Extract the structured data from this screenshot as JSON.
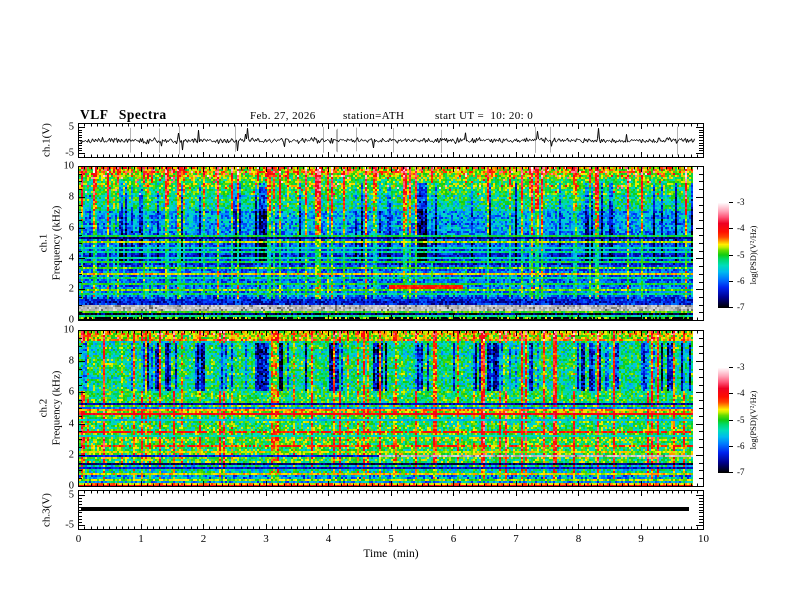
{
  "header": {
    "title": "VLF Spectra",
    "date": "Feb. 27, 2026",
    "station": "station=ATH",
    "start_ut": "start UT =  10: 20: 0"
  },
  "xaxis": {
    "label": "Time  (min)",
    "lim": [
      0,
      10
    ],
    "tick_labels": [
      "0",
      "1",
      "2",
      "3",
      "4",
      "5",
      "6",
      "7",
      "8",
      "9",
      "10"
    ],
    "minor_per_major": 10
  },
  "colorbar": {
    "label": "log(PSD)(V²/Hz)",
    "lim": [
      -7,
      -3
    ],
    "tick_labels": [
      "-3",
      "-4",
      "-5",
      "-6",
      "-7"
    ],
    "tick_values": [
      -3,
      -4,
      -5,
      -6,
      -7
    ],
    "stops": [
      [
        0.0,
        "#000000"
      ],
      [
        0.095,
        "#00008c"
      ],
      [
        0.19,
        "#0022ee"
      ],
      [
        0.27,
        "#0077ff"
      ],
      [
        0.34,
        "#00bbee"
      ],
      [
        0.4,
        "#00ddbb"
      ],
      [
        0.46,
        "#00d966"
      ],
      [
        0.5,
        "#11cc11"
      ],
      [
        0.545,
        "#66dd00"
      ],
      [
        0.575,
        "#ccee00"
      ],
      [
        0.6,
        "#ffee00"
      ],
      [
        0.635,
        "#ff9900"
      ],
      [
        0.67,
        "#ff4400"
      ],
      [
        0.72,
        "#ff0f00"
      ],
      [
        0.8,
        "#ee0022"
      ],
      [
        0.86,
        "#ff5577"
      ],
      [
        0.92,
        "#ffa8bb"
      ],
      [
        1.0,
        "#ffffff"
      ]
    ]
  },
  "chart_data": [
    {
      "type": "line",
      "name": "ch1-waveform",
      "ylabel": "ch.1(V)",
      "ylim": [
        -5,
        5
      ],
      "ytick_values": [
        5,
        -5
      ],
      "ytick_labels": [
        "5",
        "-5"
      ],
      "xlim": [
        0,
        10
      ],
      "seed": 11,
      "signal": {
        "kind": "noise",
        "mean": 0,
        "noise_amp": 0.5,
        "spike_rate": 0.045,
        "spike_amp": 3.4,
        "gray_events": 13,
        "end_min": 9.85
      }
    },
    {
      "type": "heatmap",
      "name": "ch1-spectrogram",
      "ylabel_lines": [
        "ch.1",
        "Frequency  (kHz)"
      ],
      "ylim": [
        0,
        10
      ],
      "ytick_values": [
        0,
        2,
        4,
        6,
        8,
        10
      ],
      "ytick_labels": [
        "0",
        "2",
        "4",
        "6",
        "8",
        "10"
      ],
      "xlim": [
        0,
        10
      ],
      "zlabel": "log(PSD)(V²/Hz)",
      "zlim": [
        -7,
        -3
      ],
      "seed": 42,
      "spectrum": {
        "end_min": 9.83,
        "row_noise": 0.3,
        "bands": [
          {
            "f": [
              9.4,
              10.0
            ],
            "level": -4.7,
            "noise": 0.45,
            "hot_speckle": 0.12
          },
          {
            "f": [
              8.2,
              9.4
            ],
            "level": -5.0,
            "noise": 0.45,
            "hot_speckle": 0.03
          },
          {
            "f": [
              7.2,
              8.2
            ],
            "level": -5.35,
            "noise": 0.5
          },
          {
            "f": [
              5.4,
              7.2
            ],
            "level": -5.8,
            "noise": 0.5
          },
          {
            "f": [
              4.6,
              5.4
            ],
            "level": -6.05,
            "noise": 0.4
          },
          {
            "f": [
              3.6,
              4.6
            ],
            "level": -6.25,
            "noise": 0.35
          },
          {
            "f": [
              2.6,
              3.6
            ],
            "level": -6.1,
            "noise": 0.4
          },
          {
            "f": [
              1.6,
              2.6
            ],
            "level": -5.95,
            "noise": 0.45
          },
          {
            "f": [
              1.05,
              1.6
            ],
            "level": -6.3,
            "noise": 0.4
          },
          {
            "f": [
              0.65,
              1.05
            ],
            "level": -5.9,
            "noise": 0.3,
            "gray": true
          },
          {
            "f": [
              0.18,
              0.65
            ],
            "level": -6.75,
            "noise": 0.45
          },
          {
            "f": [
              0.0,
              0.18
            ],
            "level": -7.0,
            "noise": 0.15
          }
        ],
        "h_lines": [
          {
            "f": 5.5,
            "level": -5.1
          },
          {
            "f": 5.38,
            "level": -6.6
          },
          {
            "f": 5.15,
            "level": -4.75
          },
          {
            "f": 4.75,
            "level": -5.4
          },
          {
            "f": 4.45,
            "level": -5.3
          },
          {
            "f": 4.1,
            "level": -5.35
          },
          {
            "f": 3.85,
            "level": -5.1
          },
          {
            "f": 3.4,
            "level": -4.9
          },
          {
            "f": 3.0,
            "level": -4.6
          },
          {
            "f": 2.72,
            "level": -5.25
          },
          {
            "f": 2.35,
            "level": -5.05
          },
          {
            "f": 1.95,
            "level": -4.85
          },
          {
            "f": 1.72,
            "level": -5.2
          },
          {
            "f": 0.55,
            "level": -4.95
          },
          {
            "f": 0.33,
            "level": -5.3
          },
          {
            "f": 0.12,
            "level": -4.8,
            "broken": 0.5
          }
        ],
        "segments": [
          {
            "f": 2.18,
            "t": [
              4.95,
              6.15
            ],
            "w": 0.22,
            "level": -4.15
          }
        ],
        "streaks": {
          "green": {
            "density": 0.22,
            "strength": 1.15,
            "f": [
              1.4,
              10
            ]
          },
          "dark": {
            "density": 0.33,
            "strength": -0.9,
            "f": [
              3.8,
              9.0
            ]
          }
        }
      }
    },
    {
      "type": "heatmap",
      "name": "ch2-spectrogram",
      "ylabel_lines": [
        "ch.2",
        "Frequency  (kHz)"
      ],
      "ylim": [
        0,
        10
      ],
      "ytick_values": [
        0,
        2,
        4,
        6,
        8,
        10
      ],
      "ytick_labels": [
        "0",
        "2",
        "4",
        "6",
        "8",
        "10"
      ],
      "xlim": [
        0,
        10
      ],
      "zlabel": "log(PSD)(V²/Hz)",
      "zlim": [
        -7,
        -3
      ],
      "seed": 77,
      "spectrum": {
        "end_min": 9.83,
        "row_noise": 0.25,
        "bands": [
          {
            "f": [
              9.35,
              10.0
            ],
            "level": -4.75,
            "noise": 0.4,
            "hot_speckle": 0.05
          },
          {
            "f": [
              6.1,
              9.35
            ],
            "level": -5.3,
            "noise": 0.5
          },
          {
            "f": [
              5.35,
              6.1
            ],
            "level": -5.15,
            "noise": 0.45
          },
          {
            "f": [
              4.55,
              5.35
            ],
            "level": -4.95,
            "noise": 0.4
          },
          {
            "f": [
              3.6,
              4.55
            ],
            "level": -5.15,
            "noise": 0.5
          },
          {
            "f": [
              2.6,
              3.6
            ],
            "level": -5.0,
            "noise": 0.45
          },
          {
            "f": [
              1.55,
              2.6
            ],
            "level": -5.1,
            "noise": 0.5
          },
          {
            "f": [
              0.75,
              1.55
            ],
            "level": -5.45,
            "noise": 0.55
          },
          {
            "f": [
              0.28,
              0.75
            ],
            "level": -5.7,
            "noise": 0.6
          },
          {
            "f": [
              0.0,
              0.28
            ],
            "level": -6.6,
            "noise": 0.4
          }
        ],
        "h_lines": [
          {
            "f": 5.32,
            "level": -6.5
          },
          {
            "f": 5.12,
            "level": -5.9
          },
          {
            "f": 4.95,
            "level": -4.45
          },
          {
            "f": 4.68,
            "level": -3.95
          },
          {
            "f": 4.3,
            "level": -5.6
          },
          {
            "f": 3.56,
            "level": -4.1,
            "broken": 0.2
          },
          {
            "f": 3.2,
            "level": -5.4
          },
          {
            "f": 2.56,
            "level": -4.15,
            "broken": 0.35
          },
          {
            "f": 2.2,
            "level": -4.7
          },
          {
            "f": 2.0,
            "level": -6.3
          },
          {
            "f": 1.5,
            "level": -6.7
          },
          {
            "f": 1.18,
            "level": -6.4
          },
          {
            "f": 0.75,
            "level": -4.6
          },
          {
            "f": 0.45,
            "level": -4.8
          },
          {
            "f": 0.22,
            "level": -4.5
          },
          {
            "f": 0.06,
            "level": -4.0
          }
        ],
        "segments": [
          {
            "f": 1.97,
            "t": [
              4.8,
              9.83
            ],
            "w": 0.16,
            "gray": true
          }
        ],
        "streaks": {
          "green": {
            "density": 0.18,
            "strength": 1.05,
            "f": [
              0.5,
              10
            ]
          },
          "dark": {
            "density": 0.42,
            "strength": -1.15,
            "f": [
              6.2,
              9.3
            ]
          }
        }
      }
    },
    {
      "type": "line",
      "name": "ch3-waveform",
      "ylabel": "ch.3(V)",
      "ylim": [
        -5,
        5
      ],
      "ytick_values": [
        5,
        -5
      ],
      "ytick_labels": [
        "5",
        "-5"
      ],
      "xlim": [
        0,
        10
      ],
      "seed": 5,
      "signal": {
        "kind": "constant",
        "value": 0.25,
        "thickness": 4,
        "end_min": 9.8
      }
    }
  ]
}
